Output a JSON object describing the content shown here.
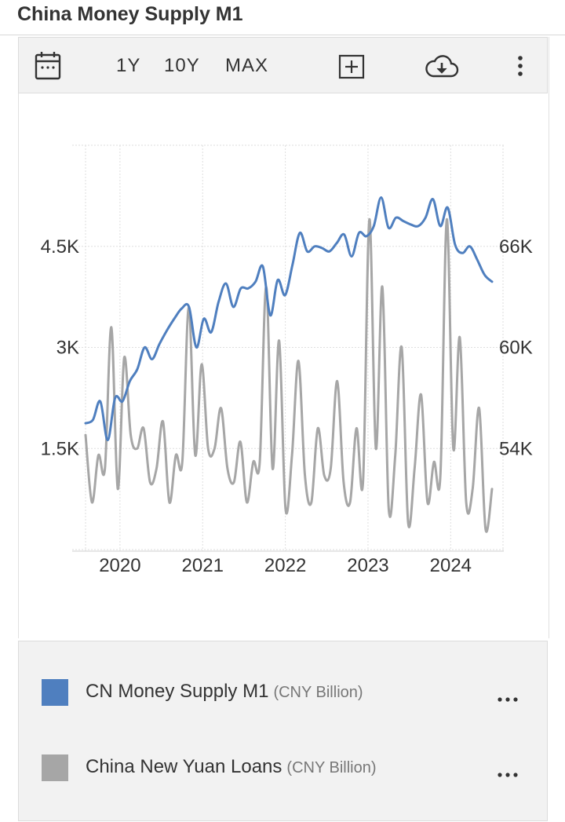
{
  "page": {
    "title": "China Money Supply M1"
  },
  "toolbar": {
    "ranges": [
      "1Y",
      "10Y",
      "MAX"
    ],
    "icons": [
      "calendar-icon",
      "add-box-icon",
      "cloud-download-icon",
      "more-vertical-icon"
    ]
  },
  "legend": {
    "items": [
      {
        "name": "CN Money Supply M1",
        "unit": "(CNY Billion)",
        "color": "#4f7fbf"
      },
      {
        "name": "China New Yuan Loans",
        "unit": "(CNY Billion)",
        "color": "#a6a6a6"
      }
    ]
  },
  "chart_data": {
    "type": "line",
    "x_tick_labels": [
      "2020",
      "2021",
      "2022",
      "2023",
      "2024"
    ],
    "y_left_tick_labels": [
      "1.5K",
      "3K",
      "4.5K"
    ],
    "y_right_tick_labels": [
      "54K",
      "60K",
      "66K"
    ],
    "x_range": [
      "2019-08",
      "2024-07"
    ],
    "y_left_range": [
      0,
      6000
    ],
    "y_right_range": [
      48000,
      72000
    ],
    "grid": true,
    "series": [
      {
        "name": "China New Yuan Loans",
        "axis": "left",
        "color": "#a6a6a6",
        "values": [
          1700,
          700,
          1400,
          1200,
          3300,
          900,
          2850,
          1700,
          1500,
          1800,
          1000,
          1200,
          1900,
          700,
          1400,
          1300,
          3600,
          1400,
          2750,
          1500,
          1500,
          2100,
          1200,
          1000,
          1600,
          700,
          1300,
          1300,
          3900,
          1200,
          3100,
          600,
          1400,
          2800,
          1100,
          700,
          1800,
          1100,
          1200,
          2500,
          1000,
          700,
          1800,
          1000,
          4900,
          1500,
          3900,
          600,
          1400,
          3000,
          400,
          1200,
          2300,
          700,
          1300,
          1100,
          4900,
          1500,
          3150,
          700,
          900,
          2100,
          300,
          900
        ]
      },
      {
        "name": "CN Money Supply M1",
        "axis": "right",
        "color": "#4f7fbf",
        "values": [
          55500,
          55700,
          56800,
          54500,
          57000,
          56800,
          58000,
          58700,
          60000,
          59300,
          60200,
          61000,
          61700,
          62300,
          62400,
          60000,
          61700,
          60900,
          62700,
          63800,
          62400,
          63500,
          63500,
          63900,
          64800,
          61900,
          64000,
          63100,
          64900,
          66800,
          65700,
          66000,
          65900,
          65700,
          66200,
          66700,
          65400,
          66800,
          66600,
          67200,
          68900,
          67100,
          67700,
          67500,
          67300,
          67200,
          67700,
          68800,
          67200,
          68300,
          66100,
          65600,
          66000,
          65200,
          64300,
          63900
        ]
      }
    ]
  }
}
